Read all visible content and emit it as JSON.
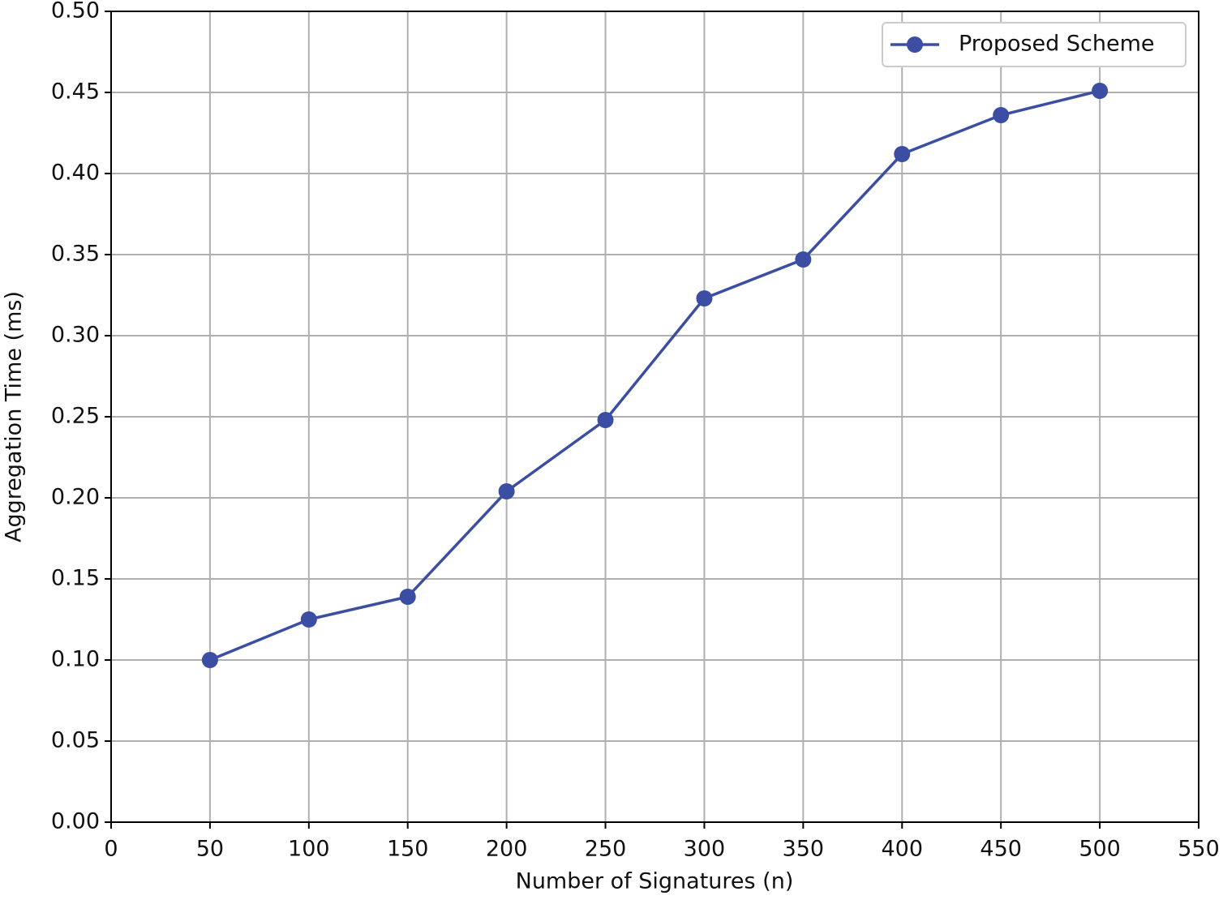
{
  "chart_data": {
    "type": "line",
    "x_label": "Number of Signatures (n)",
    "y_label": "Aggregation Time (ms)",
    "x": [
      50,
      100,
      150,
      200,
      250,
      300,
      350,
      400,
      450,
      500
    ],
    "series": [
      {
        "name": "Proposed Scheme",
        "color": "#3b4ea3",
        "values": [
          0.1,
          0.125,
          0.139,
          0.204,
          0.248,
          0.323,
          0.347,
          0.412,
          0.436,
          0.451
        ]
      }
    ],
    "xlim": [
      0,
      550
    ],
    "xticks": [
      0,
      50,
      100,
      150,
      200,
      250,
      300,
      350,
      400,
      450,
      500,
      550
    ],
    "ylim": [
      0,
      0.5
    ],
    "yticks": [
      {
        "value": 0,
        "label": "0.00"
      },
      {
        "value": 0.05,
        "label": "0.05"
      },
      {
        "value": 0.1,
        "label": "0.10"
      },
      {
        "value": 0.15,
        "label": "0.15"
      },
      {
        "value": 0.2,
        "label": "0.20"
      },
      {
        "value": 0.25,
        "label": "0.25"
      },
      {
        "value": 0.3,
        "label": "0.30"
      },
      {
        "value": 0.35,
        "label": "0.35"
      },
      {
        "value": 0.4,
        "label": "0.40"
      },
      {
        "value": 0.45,
        "label": "0.45"
      },
      {
        "value": 0.5,
        "label": "0.50"
      }
    ],
    "grid": true,
    "legend": "upper-right"
  }
}
